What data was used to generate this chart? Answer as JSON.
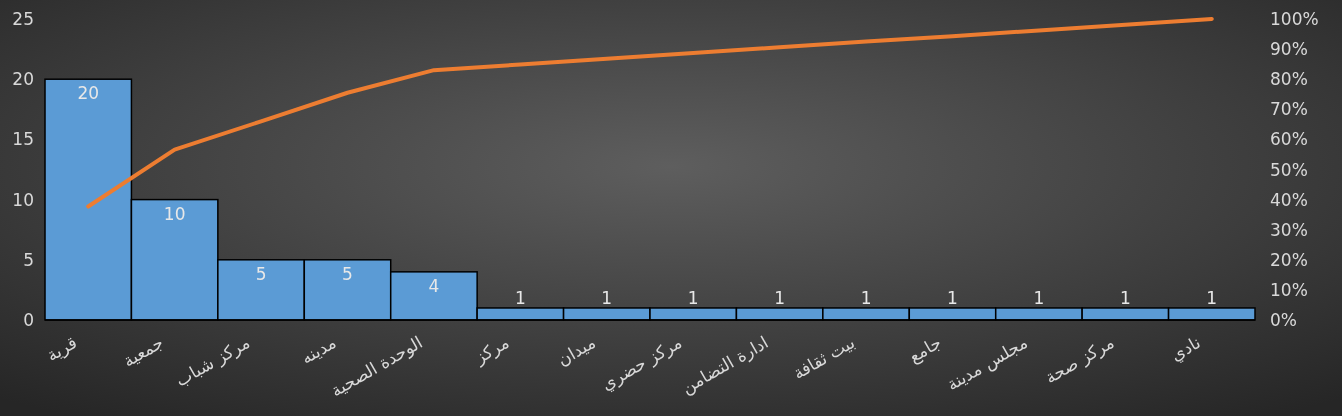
{
  "chart_data": {
    "type": "bar",
    "categories": [
      "قرية",
      "جمعية",
      "مركز شباب",
      "مدينه",
      "الوحدة الصحية",
      "مركز",
      "ميدان",
      "مركز حضري",
      "ادارة التضامن",
      "بيت ثقافة",
      "جامع",
      "مجلس مدينة",
      "مركز صحة",
      "نادي"
    ],
    "series": [
      {
        "color": "#5b9bd5",
        "values": [
          20,
          10,
          5,
          5,
          4,
          1,
          1,
          1,
          1,
          1,
          1,
          1,
          1,
          1
        ],
        "value_labels": [
          "20",
          "10",
          "5",
          "5",
          "4",
          "1",
          "1",
          "1",
          "1",
          "1",
          "1",
          "1",
          "1",
          "1"
        ]
      },
      {
        "type": "line",
        "axis": "y2",
        "color": "#ed7d31",
        "values": [
          37.7,
          56.6,
          66.0,
          75.5,
          83.0,
          84.9,
          86.8,
          88.7,
          90.6,
          92.5,
          94.3,
          96.2,
          98.1,
          100
        ]
      }
    ],
    "ylim": [
      0,
      25
    ],
    "yticks": [
      0,
      5,
      10,
      15,
      20,
      25
    ],
    "y2lim": [
      0,
      100
    ],
    "y2ticks": [
      {
        "value": 0,
        "label": "0%"
      },
      {
        "value": 10,
        "label": "10%"
      },
      {
        "value": 20,
        "label": "20%"
      },
      {
        "value": 30,
        "label": "30%"
      },
      {
        "value": 40,
        "label": "40%"
      },
      {
        "value": 50,
        "label": "50%"
      },
      {
        "value": 60,
        "label": "60%"
      },
      {
        "value": 70,
        "label": "70%"
      },
      {
        "value": 80,
        "label": "80%"
      },
      {
        "value": 90,
        "label": "90%"
      },
      {
        "value": 100,
        "label": "100%"
      }
    ],
    "grid": false,
    "marker": "none",
    "line_style": "solid"
  }
}
